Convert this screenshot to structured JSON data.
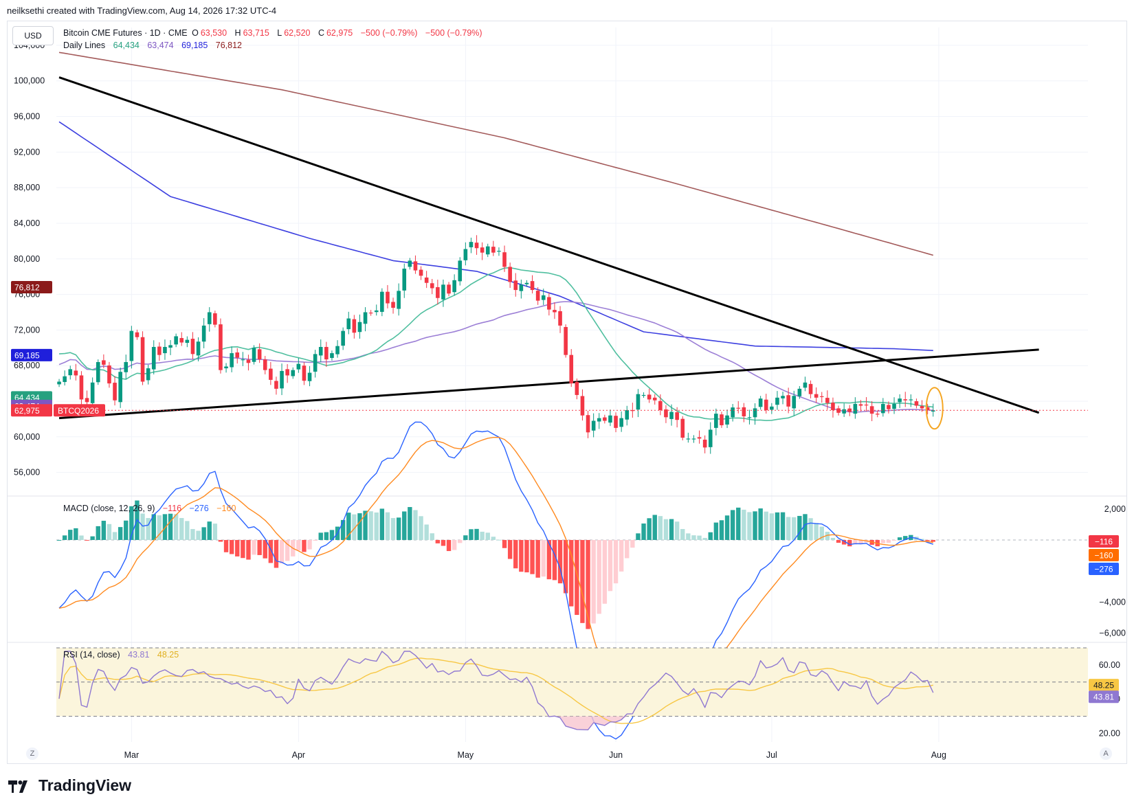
{
  "header": {
    "credit": "neilksethi created with TradingView.com, Aug 14, 2026 17:32 UTC-4"
  },
  "currency_button": "USD",
  "legend": {
    "symbol": "Bitcoin CME Futures · 1D · CME",
    "o_label": "O",
    "o": "63,530",
    "h_label": "H",
    "h": "63,715",
    "l_label": "L",
    "l": "62,520",
    "c_label": "C",
    "c": "62,975",
    "change": "−500 (−0.79%)",
    "change2": "−500 (−0.79%)",
    "lines_label": "Daily Lines",
    "ma1": "64,434",
    "ma2": "63,474",
    "ma3": "69,185",
    "ma4": "76,812"
  },
  "macd_legend": {
    "label": "MACD (close, 12, 26, 9)",
    "v1": "−116",
    "v2": "−276",
    "v3": "−160"
  },
  "rsi_legend": {
    "label": "RSI (14, close)",
    "v1": "43.81",
    "v2": "48.25"
  },
  "footer": {
    "brand": "TradingView",
    "left_corner": "Z",
    "right_corner": "A"
  },
  "colors": {
    "up": "#089981",
    "down": "#f23645",
    "ma_teal": "#4fbf9f",
    "ma_purple": "#9c7fd6",
    "ma_blue": "#3c3fe0",
    "ma_brown": "#a35a5a",
    "macd": "#2962ff",
    "signal": "#ff8a1f",
    "rsi": "#8f78d1",
    "rsi_ma": "#f7c744",
    "highlight": "#f5a623"
  },
  "chart_data": [
    {
      "type": "candlestick",
      "title": "Bitcoin CME Futures · 1D · CME",
      "x_labels": [
        "Mar",
        "Apr",
        "May",
        "Jun",
        "Jul",
        "Aug"
      ],
      "x_label_days": [
        13,
        43,
        73,
        100,
        128,
        158
      ],
      "ylim": [
        53500,
        106000
      ],
      "y_ticks": [
        56000,
        60000,
        64000,
        68000,
        72000,
        76000,
        80000,
        84000,
        88000,
        92000,
        96000,
        100000,
        104000
      ],
      "y_tick_labels": [
        "56,000",
        "60,000",
        "64,000",
        "68,000",
        "72,000",
        "76,000",
        "80,000",
        "84,000",
        "88,000",
        "92,000",
        "96,000",
        "100,000",
        "104,000"
      ],
      "closes": [
        66200,
        66800,
        67600,
        66900,
        64200,
        63900,
        66100,
        68400,
        68100,
        66000,
        64100,
        67300,
        68400,
        71900,
        71200,
        66200,
        67700,
        70100,
        69200,
        70100,
        70300,
        71300,
        70600,
        70900,
        69300,
        70700,
        72500,
        74000,
        72600,
        67500,
        67900,
        69400,
        68900,
        68700,
        68300,
        70000,
        68700,
        67500,
        66400,
        65400,
        67400,
        66900,
        67500,
        68200,
        66300,
        67200,
        69300,
        70100,
        68700,
        69400,
        70200,
        71900,
        73300,
        71700,
        72900,
        74000,
        73900,
        74200,
        76300,
        75000,
        74500,
        76400,
        78900,
        79800,
        78700,
        78100,
        77300,
        76700,
        75600,
        77100,
        76100,
        77600,
        79800,
        81100,
        81900,
        81200,
        80700,
        81400,
        80700,
        80900,
        79100,
        77400,
        76500,
        77100,
        77300,
        76500,
        75300,
        75900,
        74300,
        74000,
        72500,
        69200,
        66000,
        64700,
        62400,
        60500,
        61800,
        62100,
        61800,
        62400,
        61000,
        62100,
        63000,
        62900,
        64800,
        64700,
        64200,
        64100,
        63000,
        62200,
        62800,
        61900,
        59900,
        59800,
        59800,
        59800,
        58800,
        60800,
        62600,
        61300,
        62400,
        63300,
        63200,
        62300,
        62200,
        63200,
        64300,
        63000,
        63400,
        64400,
        64600,
        63400,
        64600,
        65400,
        66100,
        64800,
        64400,
        64500,
        63800,
        63000,
        62700,
        63100,
        62800,
        63700,
        63500,
        63600,
        62600,
        62500,
        63700,
        63100,
        63700,
        64300,
        64100,
        64200,
        63500,
        63200,
        63000,
        62975
      ],
      "moving_averages": [
        {
          "value_label": "64,434",
          "last": 64434
        },
        {
          "value_label": "63,474",
          "last": 63474
        },
        {
          "value_label": "69,185",
          "last": 69185
        },
        {
          "value_label": "76,812",
          "last": 76812
        }
      ],
      "price_badges": [
        {
          "value": 76812,
          "label": "76,812",
          "color": "#8b1a1a"
        },
        {
          "value": 69185,
          "label": "69,185",
          "color": "#1f1fdb"
        },
        {
          "value": 64434,
          "label": "64,434",
          "color": "#26a17f"
        },
        {
          "value": 63474,
          "label": "63,474",
          "color": "#7e57c2"
        },
        {
          "value": 62975,
          "label": "62,975",
          "color": "#f23645",
          "tag": "BTCQ2026"
        }
      ],
      "trendlines": [
        {
          "from": [
            0,
            100400
          ],
          "to": [
            176,
            62700
          ]
        },
        {
          "from": [
            0,
            62100
          ],
          "to": [
            176,
            69800
          ]
        }
      ]
    },
    {
      "type": "macd",
      "ylim": [
        -6600,
        2700
      ],
      "y_ticks": [
        2000,
        -4000,
        -6000
      ],
      "y_tick_labels": [
        "2,000",
        "−4,000",
        "−6,000"
      ],
      "macd_last": -276,
      "signal_last": -160,
      "hist_last": -116
    },
    {
      "type": "rsi",
      "ylim": [
        15,
        72
      ],
      "y_ticks": [
        60,
        40,
        20
      ],
      "y_tick_labels": [
        "60.00",
        "40.00",
        "20.00"
      ],
      "levels": [
        70,
        50,
        30
      ],
      "rsi_last": 43.81,
      "rsi_ma_last": 48.25
    }
  ]
}
